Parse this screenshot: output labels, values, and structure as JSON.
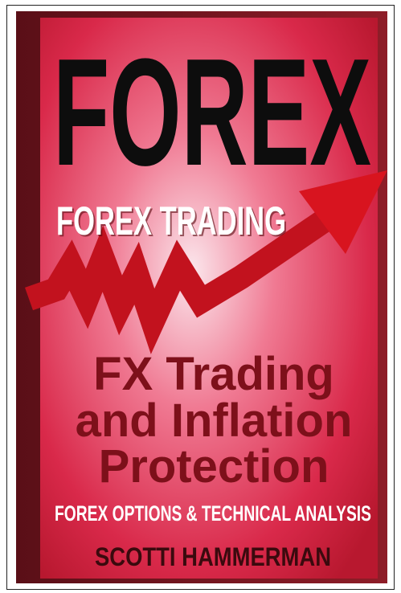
{
  "cover": {
    "title": "FOREX",
    "subtitle": "FOREX TRADING",
    "headline": [
      "FX Trading",
      "and Inflation",
      "Protection"
    ],
    "tagline": "FOREX OPTIONS & TECHNICAL ANALYSIS",
    "author": "SCOTTI HAMMERMAN"
  }
}
